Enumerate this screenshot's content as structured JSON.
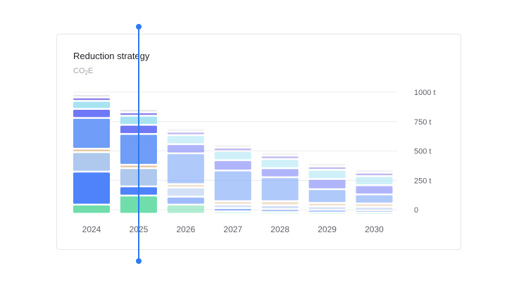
{
  "card": {
    "title": "Reduction strategy",
    "subtitle_main": "CO",
    "subtitle_sub": "2",
    "subtitle_tail": "E"
  },
  "chart_data": {
    "type": "bar",
    "stacked": true,
    "categories": [
      "2024",
      "2025",
      "2026",
      "2027",
      "2028",
      "2029",
      "2030"
    ],
    "y_ticks": [
      0,
      250,
      500,
      750,
      1000
    ],
    "y_tick_labels": [
      "0",
      "250 t",
      "500 t",
      "750 t",
      "1000 t"
    ],
    "ylim": [
      0,
      1000
    ],
    "grid": true,
    "active_category": "2025",
    "series": [
      {
        "color": "#6fdeab",
        "values": [
          80,
          160,
          80,
          20,
          15,
          10,
          10
        ]
      },
      {
        "color": "#4e83fb",
        "values": [
          290,
          80,
          70,
          30,
          25,
          25,
          20
        ]
      },
      {
        "color": "#aec8ee",
        "values": [
          170,
          160,
          80,
          30,
          35,
          30,
          30
        ]
      },
      {
        "color": "#e7c7a0",
        "values": [
          30,
          30,
          30,
          30,
          35,
          30,
          30
        ]
      },
      {
        "color": "#6f9df7",
        "values": [
          270,
          270,
          270,
          270,
          210,
          120,
          80
        ]
      },
      {
        "color": "#6f79f7",
        "values": [
          80,
          80,
          80,
          90,
          80,
          90,
          80
        ]
      },
      {
        "color": "#a8e3f2",
        "values": [
          70,
          80,
          80,
          80,
          80,
          80,
          80
        ]
      },
      {
        "color": "#8d82e8",
        "values": [
          30,
          30,
          30,
          30,
          30,
          30,
          30
        ]
      },
      {
        "color": "#e8e8ec",
        "values": [
          30,
          30,
          30,
          30,
          30,
          30,
          30
        ]
      }
    ]
  }
}
